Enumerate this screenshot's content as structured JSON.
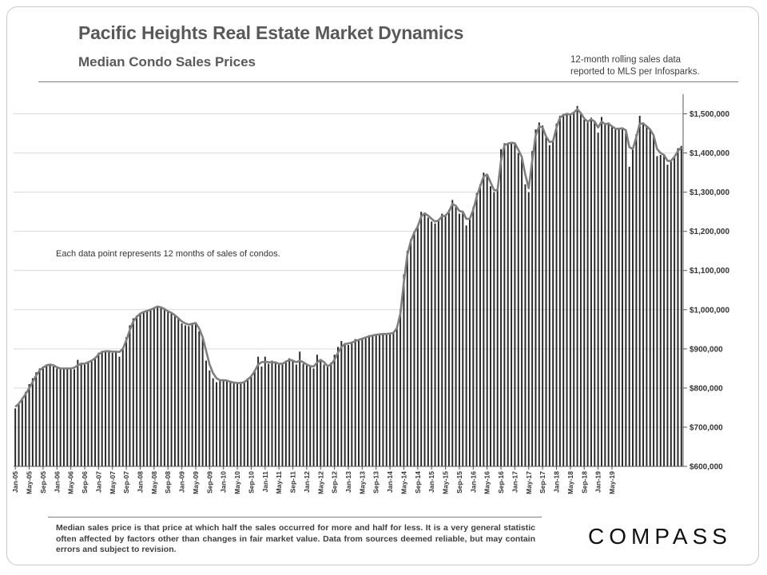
{
  "header": {
    "title": "Pacific Heights Real Estate Market Dynamics",
    "subtitle": "Median  Condo  Sales  Prices",
    "note_line1": "12-month rolling sales data",
    "note_line2": "reported to MLS per Infosparks."
  },
  "inner_note": "Each data point represents 12 months of sales of condos.",
  "footnote": "Median sales price is that price at which half the sales occurred for more and half for less. It is a very general statistic often affected by factors other than changes in fair market value. Data from sources deemed reliable, but may contain errors and subject to revision.",
  "logo": "COMPASS",
  "colors": {
    "bar": "#262626",
    "line": "#7f7f7f",
    "axis": "#595959"
  },
  "chart_data": {
    "type": "bar",
    "title": "Pacific Heights Real Estate Market Dynamics",
    "subtitle": "Median  Condo  Sales  Prices",
    "ylim": [
      600000,
      1550000
    ],
    "yticks": [
      600000,
      700000,
      800000,
      900000,
      1000000,
      1100000,
      1200000,
      1300000,
      1400000,
      1500000
    ],
    "ytick_labels": [
      "$600,000",
      "$700,000",
      "$800,000",
      "$900,000",
      "$1,000,000",
      "$1,100,000",
      "$1,200,000",
      "$1,300,000",
      "$1,400,000",
      "$1,500,000"
    ],
    "y_axis_side": "right",
    "grid": true,
    "start": "Jan-05",
    "x_tick_labels": [
      "Jan-05",
      "May-05",
      "Sep-05",
      "Jan-06",
      "May-06",
      "Sep-06",
      "Jan-07",
      "May-07",
      "Sep-07",
      "Jan-08",
      "May-08",
      "Sep-08",
      "Jan-09",
      "May-09",
      "Sep-09",
      "Jan-10",
      "May-10",
      "Sep-10",
      "Jan-11",
      "May-11",
      "Sep-11",
      "Jan-12",
      "May-12",
      "Sep-12",
      "Jan-13",
      "May-13",
      "Sep-13",
      "Jan-14",
      "May-14",
      "Sep-14",
      "Jan-15",
      "May-15",
      "Sep-15",
      "Jan-16",
      "May-16",
      "Sep-16",
      "Jan-17",
      "May-17",
      "Sep-17",
      "Jan-18",
      "May-18",
      "Sep-18",
      "Jan-19",
      "May-19"
    ],
    "series": [
      {
        "kind": "bar",
        "values": [
          748000,
          760000,
          775000,
          790000,
          810000,
          825000,
          840000,
          850000,
          855000,
          858000,
          860000,
          855000,
          850000,
          848000,
          850000,
          852000,
          850000,
          848000,
          872000,
          865000,
          860000,
          868000,
          870000,
          875000,
          890000,
          895000,
          895000,
          893000,
          890000,
          895000,
          880000,
          900000,
          930000,
          960000,
          978000,
          985000,
          990000,
          995000,
          998000,
          1000000,
          1005000,
          1010000,
          1005000,
          1000000,
          995000,
          990000,
          985000,
          978000,
          965000,
          960000,
          958000,
          962000,
          968000,
          945000,
          930000,
          870000,
          845000,
          825000,
          815000,
          818000,
          822000,
          820000,
          815000,
          813000,
          812000,
          812000,
          815000,
          825000,
          830000,
          845000,
          880000,
          855000,
          880000,
          862000,
          870000,
          868000,
          862000,
          860000,
          870000,
          876000,
          870000,
          860000,
          893000,
          862000,
          858000,
          855000,
          850000,
          885000,
          870000,
          860000,
          855000,
          865000,
          885000,
          905000,
          920000,
          915000,
          910000,
          918000,
          925000,
          925000,
          928000,
          930000,
          935000,
          935000,
          937000,
          938000,
          940000,
          938000,
          940000,
          942000,
          955000,
          1000000,
          1090000,
          1150000,
          1180000,
          1200000,
          1215000,
          1250000,
          1245000,
          1235000,
          1225000,
          1220000,
          1230000,
          1245000,
          1240000,
          1255000,
          1280000,
          1262000,
          1245000,
          1250000,
          1215000,
          1232000,
          1262000,
          1298000,
          1320000,
          1350000,
          1345000,
          1315000,
          1300000,
          1310000,
          1410000,
          1425000,
          1425000,
          1428000,
          1425000,
          1400000,
          1385000,
          1320000,
          1300000,
          1405000,
          1460000,
          1478000,
          1470000,
          1440000,
          1420000,
          1430000,
          1475000,
          1495000,
          1500000,
          1502000,
          1498000,
          1505000,
          1520000,
          1500000,
          1485000,
          1478000,
          1490000,
          1480000,
          1452000,
          1492000,
          1475000,
          1478000,
          1468000,
          1460000,
          1462000,
          1465000,
          1460000,
          1365000,
          1412000,
          1448000,
          1495000,
          1478000,
          1470000,
          1462000,
          1445000,
          1392000,
          1395000,
          1395000,
          1370000,
          1378000,
          1392000,
          1412000,
          1418000
        ]
      },
      {
        "kind": "line",
        "values": [
          752000,
          760000,
          772000,
          785000,
          800000,
          815000,
          832000,
          845000,
          852000,
          858000,
          860000,
          858000,
          853000,
          850000,
          850000,
          850000,
          850000,
          852000,
          858000,
          862000,
          862000,
          866000,
          870000,
          876000,
          886000,
          892000,
          894000,
          894000,
          893000,
          893000,
          892000,
          900000,
          922000,
          948000,
          970000,
          982000,
          990000,
          994000,
          997000,
          1000000,
          1004000,
          1008000,
          1006000,
          1002000,
          996000,
          992000,
          986000,
          978000,
          970000,
          965000,
          962000,
          964000,
          966000,
          952000,
          930000,
          895000,
          860000,
          838000,
          825000,
          820000,
          820000,
          819000,
          816000,
          814000,
          813000,
          813000,
          815000,
          822000,
          830000,
          843000,
          860000,
          866000,
          867000,
          866000,
          866000,
          865000,
          862000,
          862000,
          867000,
          872000,
          870000,
          866000,
          870000,
          866000,
          860000,
          856000,
          855000,
          865000,
          872000,
          866000,
          856000,
          860000,
          872000,
          890000,
          905000,
          912000,
          914000,
          916000,
          920000,
          923000,
          926000,
          929000,
          932000,
          934000,
          936000,
          937000,
          938000,
          938000,
          939000,
          941000,
          953000,
          990000,
          1070000,
          1140000,
          1175000,
          1197000,
          1212000,
          1238000,
          1246000,
          1240000,
          1232000,
          1225000,
          1228000,
          1238000,
          1240000,
          1250000,
          1270000,
          1265000,
          1252000,
          1250000,
          1232000,
          1232000,
          1255000,
          1288000,
          1315000,
          1340000,
          1345000,
          1325000,
          1305000,
          1305000,
          1380000,
          1420000,
          1424000,
          1426000,
          1425000,
          1408000,
          1390000,
          1345000,
          1310000,
          1380000,
          1445000,
          1468000,
          1465000,
          1442000,
          1428000,
          1430000,
          1465000,
          1490000,
          1497000,
          1500000,
          1498000,
          1503000,
          1512000,
          1502000,
          1488000,
          1480000,
          1486000,
          1480000,
          1465000,
          1480000,
          1474000,
          1475000,
          1468000,
          1462000,
          1462000,
          1463000,
          1458000,
          1415000,
          1410000,
          1440000,
          1475000,
          1475000,
          1468000,
          1460000,
          1445000,
          1410000,
          1400000,
          1395000,
          1380000,
          1380000,
          1390000,
          1405000,
          1415000
        ]
      }
    ]
  }
}
